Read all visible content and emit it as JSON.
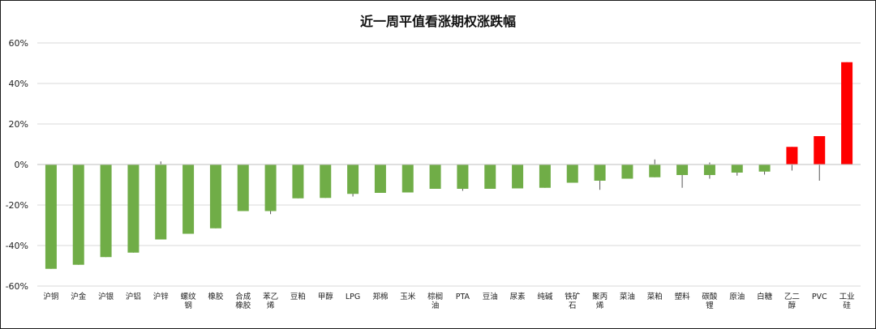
{
  "chart_data": {
    "type": "bar",
    "title": "近一周平值看涨期权涨跌幅",
    "xlabel": "",
    "ylabel": "",
    "ylim": [
      -60,
      60
    ],
    "yticks": [
      -60,
      -40,
      -20,
      0,
      20,
      40,
      60
    ],
    "ytick_labels": [
      "-60%",
      "-40%",
      "-20%",
      "0%",
      "20%",
      "40%",
      "60%"
    ],
    "grid": true,
    "legend": "none",
    "colors": {
      "positive": "#ff0000",
      "negative": "#70ad47",
      "whisker": "#555555",
      "grid": "#d9d9d9"
    },
    "categories": [
      "沪铜",
      "沪金",
      "沪银",
      "沪铝",
      "沪锌",
      "螺纹钢",
      "橡胶",
      "合成橡胶",
      "苯乙烯",
      "豆粕",
      "甲醇",
      "LPG",
      "郑棉",
      "玉米",
      "棕榈油",
      "PTA",
      "豆油",
      "尿素",
      "纯碱",
      "铁矿石",
      "聚丙烯",
      "菜油",
      "菜粕",
      "塑料",
      "碳酸锂",
      "原油",
      "白糖",
      "乙二醇",
      "PVC",
      "工业硅"
    ],
    "values": [
      -51.5,
      -49.5,
      -45.7,
      -43.5,
      -37,
      -34.2,
      -31.5,
      -23,
      -23,
      -16.7,
      -16.5,
      -14.5,
      -14,
      -13.8,
      -12,
      -12,
      -12,
      -11.8,
      -11.5,
      -9,
      -8,
      -7,
      -6.3,
      -5.2,
      -5.2,
      -4,
      -3.5,
      8.7,
      14,
      50.5
    ],
    "ranges": [
      [
        -51.5,
        0
      ],
      [
        -49.5,
        0
      ],
      [
        -45.7,
        0
      ],
      [
        -43.5,
        0
      ],
      [
        -37,
        1.5
      ],
      [
        -34.2,
        0
      ],
      [
        -31.5,
        0
      ],
      [
        -23,
        0
      ],
      [
        -24.5,
        0
      ],
      [
        -16.7,
        0
      ],
      [
        -16.5,
        0
      ],
      [
        -15.8,
        0
      ],
      [
        -14,
        0
      ],
      [
        -13.8,
        0
      ],
      [
        -12,
        0
      ],
      [
        -13,
        0
      ],
      [
        -12,
        0
      ],
      [
        -11.8,
        0
      ],
      [
        -11.5,
        0
      ],
      [
        -9,
        0
      ],
      [
        -12.5,
        0
      ],
      [
        -7,
        0
      ],
      [
        -6.3,
        2.5
      ],
      [
        -11.5,
        0
      ],
      [
        -7,
        1
      ],
      [
        -5.5,
        0
      ],
      [
        -5,
        0
      ],
      [
        -3,
        8.7
      ],
      [
        -8,
        14
      ],
      [
        0,
        50.5
      ]
    ]
  }
}
